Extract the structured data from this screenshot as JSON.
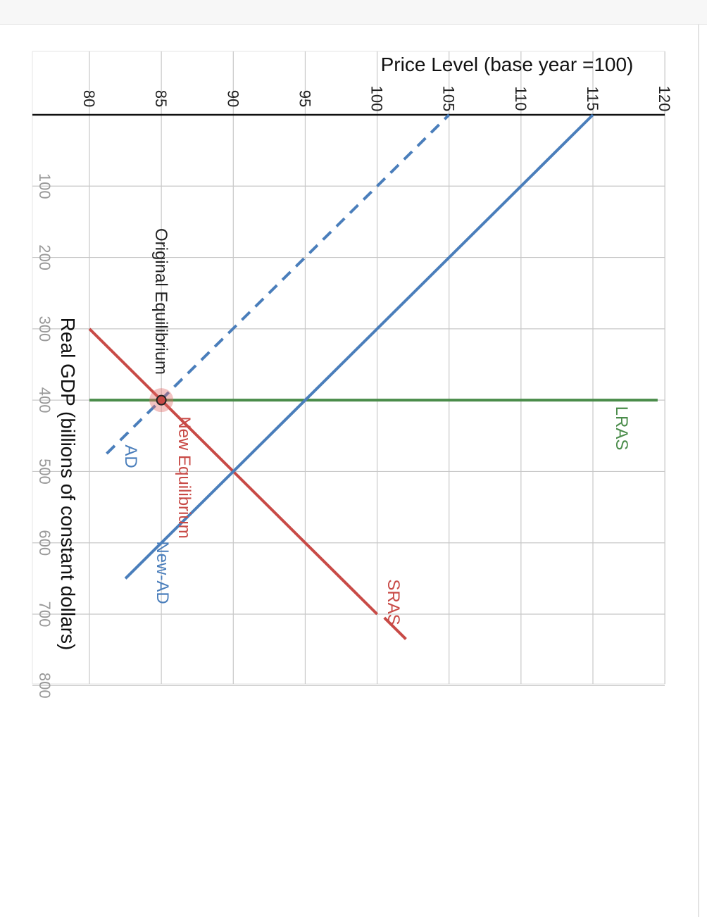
{
  "chart_data": {
    "type": "line",
    "rotation": "90deg clockwise",
    "xlabel": "Real GDP (billions of constant dollars)",
    "ylabel": "Price Level (base year =100)",
    "xlim": [
      0,
      800
    ],
    "ylim": [
      76,
      120
    ],
    "x_ticks": [
      "100",
      "200",
      "300",
      "400",
      "500",
      "600",
      "700",
      "800"
    ],
    "y_ticks": [
      "80",
      "85",
      "90",
      "95",
      "100",
      "105",
      "110",
      "115",
      "120"
    ],
    "grid": true,
    "series": [
      {
        "name": "LRAS",
        "color": "#4a8c4a",
        "style": "solid",
        "points": [
          [
            400,
            80
          ],
          [
            400,
            119.5
          ]
        ]
      },
      {
        "name": "SRAS",
        "color": "#c84a46",
        "style": "solid",
        "points": [
          [
            300,
            80
          ],
          [
            700,
            100
          ]
        ]
      },
      {
        "name": "AD",
        "color": "#4a7ebb",
        "style": "dashed",
        "points": [
          [
            475,
            81.2
          ],
          [
            100,
            100
          ],
          [
            0,
            105
          ]
        ]
      },
      {
        "name": "New-AD",
        "color": "#4a7ebb",
        "style": "solid",
        "points": [
          [
            650,
            82.5
          ],
          [
            500,
            90
          ],
          [
            100,
            110
          ],
          [
            0,
            115
          ]
        ]
      }
    ],
    "sras_extension": {
      "color": "#c84a46",
      "points": [
        [
          705,
          100.5
        ],
        [
          735,
          102
        ]
      ]
    },
    "annotations": [
      {
        "text": "Original Equilibrium",
        "x": 400,
        "y": 85,
        "color": "#222222"
      },
      {
        "text": "New Equilibrium",
        "x": 500,
        "y": 86.2,
        "color": "#c84a46"
      }
    ],
    "equilibrium_point": {
      "x": 400,
      "y": 85
    }
  },
  "labels": {
    "lras": "LRAS",
    "sras": "SRAS",
    "ad": "AD",
    "new_ad": "New-AD",
    "original_eq": "Original Equilibrium",
    "new_eq": "New Equilibrium"
  }
}
